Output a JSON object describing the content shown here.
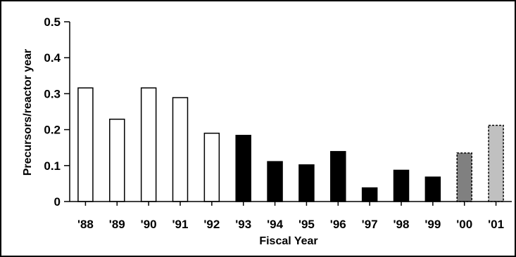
{
  "chart_data": {
    "type": "bar",
    "xlabel": "Fiscal Year",
    "ylabel": "Precursors/reactor year",
    "ylim": [
      0,
      0.5
    ],
    "yticks": [
      "0",
      "0.1",
      "0.2",
      "0.3",
      "0.4",
      "0.5"
    ],
    "categories": [
      "'88",
      "'89",
      "'90",
      "'91",
      "'92",
      "'93",
      "'94",
      "'95",
      "'96",
      "'97",
      "'98",
      "'99",
      "'00",
      "'01"
    ],
    "values": [
      0.316,
      0.229,
      0.316,
      0.289,
      0.19,
      0.184,
      0.111,
      0.102,
      0.139,
      0.038,
      0.087,
      0.068,
      0.135,
      0.212
    ],
    "bar_fills": [
      "#ffffff",
      "#ffffff",
      "#ffffff",
      "#ffffff",
      "#ffffff",
      "#000000",
      "#000000",
      "#000000",
      "#000000",
      "#000000",
      "#000000",
      "#000000",
      "#808080",
      "#c0c0c0"
    ],
    "bar_dashed": [
      false,
      false,
      false,
      false,
      false,
      false,
      false,
      false,
      false,
      false,
      false,
      false,
      true,
      true
    ],
    "grid": false
  }
}
